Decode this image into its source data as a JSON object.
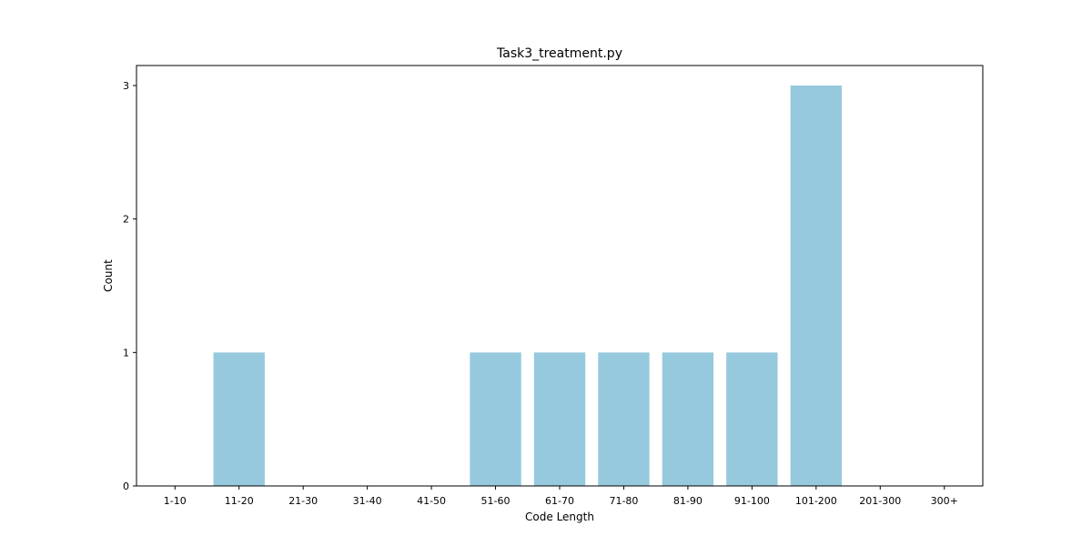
{
  "chart_data": {
    "type": "bar",
    "title": "Task3_treatment.py",
    "xlabel": "Code Length",
    "ylabel": "Count",
    "categories": [
      "1-10",
      "11-20",
      "21-30",
      "31-40",
      "41-50",
      "51-60",
      "61-70",
      "71-80",
      "81-90",
      "91-100",
      "101-200",
      "201-300",
      "300+"
    ],
    "values": [
      0,
      1,
      0,
      0,
      0,
      1,
      1,
      1,
      1,
      1,
      3,
      0,
      0
    ],
    "yticks": [
      0,
      1,
      2,
      3
    ],
    "ylim": [
      0,
      3.15
    ],
    "grid": false,
    "bar_color": "#96c9dd"
  }
}
